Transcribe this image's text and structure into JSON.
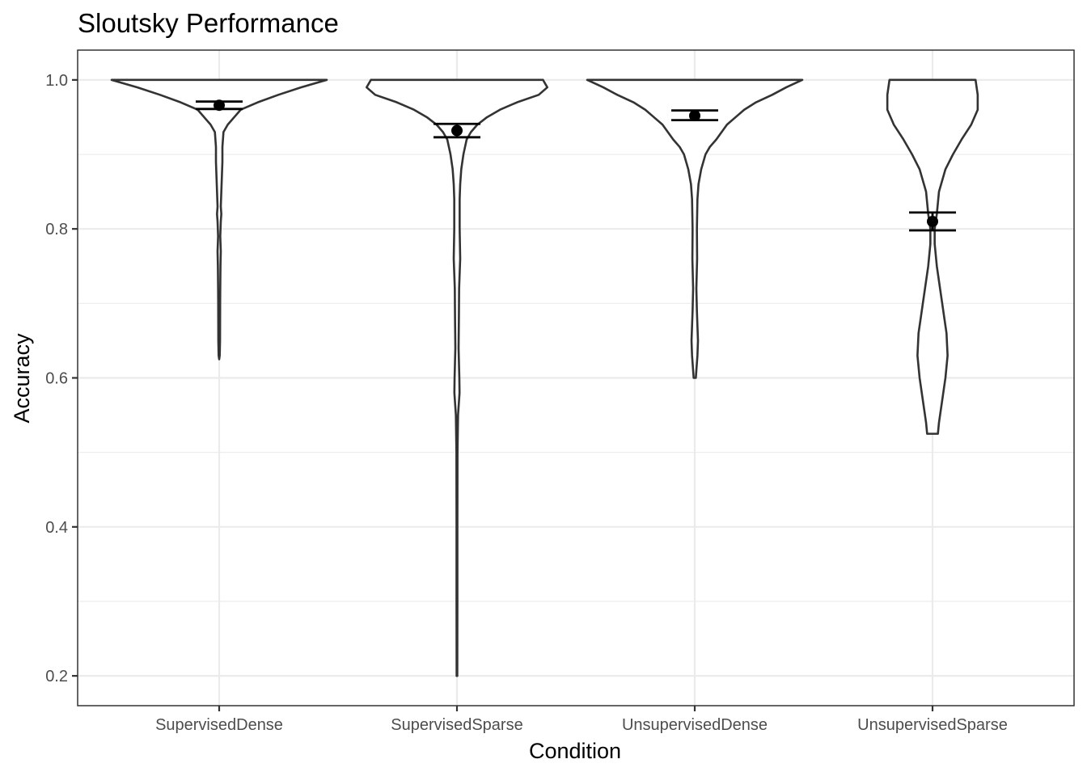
{
  "chart_data": {
    "type": "violin",
    "title": "Sloutsky Performance",
    "xlabel": "Condition",
    "ylabel": "Accuracy",
    "categories": [
      "SupervisedDense",
      "SupervisedSparse",
      "UnsupervisedDense",
      "UnsupervisedSparse"
    ],
    "ylim": [
      0.16,
      1.04
    ],
    "yticks": [
      0.2,
      0.4,
      0.6,
      0.8,
      1.0
    ],
    "ytick_labels": [
      "0.2",
      "0.4",
      "0.6",
      "0.8",
      "1.0"
    ],
    "grid": true,
    "theme": "bw",
    "series": [
      {
        "category": "SupervisedDense",
        "mean": 0.966,
        "error_bar": [
          0.961,
          0.971
        ],
        "range": [
          0.625,
          1.0
        ],
        "density": [
          [
            1.0,
            1.0
          ],
          [
            0.99,
            0.76
          ],
          [
            0.98,
            0.55
          ],
          [
            0.97,
            0.36
          ],
          [
            0.96,
            0.2
          ],
          [
            0.95,
            0.14
          ],
          [
            0.94,
            0.08
          ],
          [
            0.93,
            0.04
          ],
          [
            0.91,
            0.03
          ],
          [
            0.89,
            0.03
          ],
          [
            0.87,
            0.025
          ],
          [
            0.85,
            0.02
          ],
          [
            0.83,
            0.015
          ],
          [
            0.82,
            0.02
          ],
          [
            0.81,
            0.015
          ],
          [
            0.79,
            0.01
          ],
          [
            0.77,
            0.015
          ],
          [
            0.75,
            0.012
          ],
          [
            0.72,
            0.01
          ],
          [
            0.7,
            0.009
          ],
          [
            0.65,
            0.008
          ],
          [
            0.63,
            0.005
          ],
          [
            0.625,
            0.0
          ]
        ]
      },
      {
        "category": "SupervisedSparse",
        "mean": 0.932,
        "error_bar": [
          0.923,
          0.941
        ],
        "range": [
          0.2,
          1.0
        ],
        "density": [
          [
            1.0,
            0.8
          ],
          [
            0.99,
            0.84
          ],
          [
            0.98,
            0.76
          ],
          [
            0.97,
            0.56
          ],
          [
            0.96,
            0.4
          ],
          [
            0.95,
            0.28
          ],
          [
            0.94,
            0.19
          ],
          [
            0.93,
            0.13
          ],
          [
            0.92,
            0.09
          ],
          [
            0.9,
            0.06
          ],
          [
            0.88,
            0.04
          ],
          [
            0.86,
            0.03
          ],
          [
            0.84,
            0.025
          ],
          [
            0.8,
            0.025
          ],
          [
            0.76,
            0.03
          ],
          [
            0.72,
            0.02
          ],
          [
            0.68,
            0.018
          ],
          [
            0.64,
            0.015
          ],
          [
            0.6,
            0.022
          ],
          [
            0.58,
            0.024
          ],
          [
            0.55,
            0.01
          ],
          [
            0.5,
            0.005
          ],
          [
            0.4,
            0.004
          ],
          [
            0.3,
            0.004
          ],
          [
            0.2,
            0.003
          ]
        ]
      },
      {
        "category": "UnsupervisedDense",
        "mean": 0.952,
        "error_bar": [
          0.946,
          0.959
        ],
        "range": [
          0.6,
          1.0
        ],
        "density": [
          [
            1.0,
            1.0
          ],
          [
            0.99,
            0.85
          ],
          [
            0.98,
            0.72
          ],
          [
            0.97,
            0.57
          ],
          [
            0.96,
            0.46
          ],
          [
            0.95,
            0.38
          ],
          [
            0.94,
            0.3
          ],
          [
            0.93,
            0.25
          ],
          [
            0.92,
            0.2
          ],
          [
            0.91,
            0.14
          ],
          [
            0.9,
            0.1
          ],
          [
            0.88,
            0.06
          ],
          [
            0.86,
            0.035
          ],
          [
            0.84,
            0.025
          ],
          [
            0.8,
            0.02
          ],
          [
            0.76,
            0.022
          ],
          [
            0.72,
            0.015
          ],
          [
            0.69,
            0.02
          ],
          [
            0.67,
            0.025
          ],
          [
            0.65,
            0.03
          ],
          [
            0.63,
            0.025
          ],
          [
            0.61,
            0.015
          ],
          [
            0.6,
            0.01
          ]
        ]
      },
      {
        "category": "UnsupervisedSparse",
        "mean": 0.81,
        "error_bar": [
          0.798,
          0.822
        ],
        "range": [
          0.525,
          1.0
        ],
        "density": [
          [
            1.0,
            0.4
          ],
          [
            0.98,
            0.42
          ],
          [
            0.96,
            0.42
          ],
          [
            0.94,
            0.36
          ],
          [
            0.92,
            0.27
          ],
          [
            0.9,
            0.19
          ],
          [
            0.88,
            0.12
          ],
          [
            0.85,
            0.06
          ],
          [
            0.82,
            0.04
          ],
          [
            0.8,
            0.02
          ],
          [
            0.78,
            0.02
          ],
          [
            0.75,
            0.04
          ],
          [
            0.72,
            0.07
          ],
          [
            0.69,
            0.1
          ],
          [
            0.66,
            0.13
          ],
          [
            0.63,
            0.14
          ],
          [
            0.6,
            0.12
          ],
          [
            0.57,
            0.09
          ],
          [
            0.54,
            0.06
          ],
          [
            0.525,
            0.05
          ]
        ]
      }
    ]
  }
}
